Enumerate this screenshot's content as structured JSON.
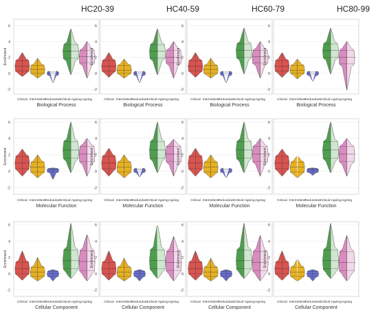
{
  "column_titles": [
    "HC20-39",
    "HC40-59",
    "HC60-79",
    "HC80-99"
  ],
  "row_titles": [
    "Biological Process",
    "Molecular Function",
    "Cellular Component"
  ],
  "categories": [
    "Critical",
    "Intermittent",
    "Redundant",
    "Critical-Ageing",
    "Ageing"
  ],
  "ylabel": "Enrichment",
  "colors": {
    "Critical": "#d9534f",
    "Intermittent": "#e6b122",
    "Redundant": "#6a6fd1",
    "Critical-Ageing": "#4f9e4f",
    "Ageing": "#d98cbf",
    "Critical-Ageing-light": "#cfe6cf",
    "Ageing-light": "#f3d8ea"
  },
  "chart_data": [
    {
      "type": "violin",
      "column": "HC20-39",
      "row": "Biological Process",
      "title": "HC20-39",
      "xlabel": "Biological Process",
      "ylabel": "Enrichment",
      "yticks": [
        -2,
        0,
        2,
        4,
        6
      ],
      "ylim": [
        -2.6,
        6.8
      ],
      "categories": [
        "Critical",
        "Intermittent",
        "Redundant",
        "Critical-Ageing",
        "Ageing"
      ],
      "violins": [
        {
          "min": -0.4,
          "max": 2.6,
          "q1": 0.3,
          "median": 0.9,
          "q3": 1.6
        },
        {
          "min": -0.6,
          "max": 1.9,
          "q1": 0.0,
          "median": 0.5,
          "q3": 1.0
        },
        {
          "min": -1.2,
          "max": 0.3,
          "q1": -0.2,
          "median": 0.05,
          "q3": 0.2
        },
        {
          "min": -0.2,
          "max": 5.6,
          "q1": 1.9,
          "median": 2.8,
          "q3": 3.6
        },
        {
          "min": -0.6,
          "max": 4.0,
          "q1": 1.3,
          "median": 2.1,
          "q3": 2.9
        }
      ]
    },
    {
      "type": "violin",
      "column": "HC40-59",
      "row": "Biological Process",
      "title": "HC40-59",
      "xlabel": "Biological Process",
      "ylabel": "Enrichment",
      "yticks": [
        -2,
        0,
        2,
        4,
        6
      ],
      "ylim": [
        -2.6,
        6.8
      ],
      "categories": [
        "Critical",
        "Intermittent",
        "Redundant",
        "Critical-Ageing",
        "Ageing"
      ],
      "violins": [
        {
          "min": -0.5,
          "max": 2.6,
          "q1": 0.3,
          "median": 0.9,
          "q3": 1.6
        },
        {
          "min": -0.6,
          "max": 1.8,
          "q1": 0.0,
          "median": 0.4,
          "q3": 1.0
        },
        {
          "min": -1.2,
          "max": 0.3,
          "q1": -0.2,
          "median": 0.05,
          "q3": 0.2
        },
        {
          "min": -0.2,
          "max": 5.6,
          "q1": 1.9,
          "median": 2.8,
          "q3": 3.6
        },
        {
          "min": -0.6,
          "max": 4.0,
          "q1": 1.3,
          "median": 2.0,
          "q3": 2.9
        }
      ]
    },
    {
      "type": "violin",
      "column": "HC60-79",
      "row": "Biological Process",
      "title": "HC60-79",
      "xlabel": "Biological Process",
      "ylabel": "Enrichment",
      "yticks": [
        -2,
        0,
        2,
        4,
        6
      ],
      "ylim": [
        -2.6,
        6.8
      ],
      "categories": [
        "Critical",
        "Intermittent",
        "Redundant",
        "Critical-Ageing",
        "Ageing"
      ],
      "violins": [
        {
          "min": -0.5,
          "max": 2.6,
          "q1": 0.3,
          "median": 0.9,
          "q3": 1.6
        },
        {
          "min": -0.6,
          "max": 1.9,
          "q1": 0.0,
          "median": 0.5,
          "q3": 1.0
        },
        {
          "min": -1.2,
          "max": 0.3,
          "q1": -0.2,
          "median": 0.05,
          "q3": 0.2
        },
        {
          "min": -0.1,
          "max": 5.7,
          "q1": 2.0,
          "median": 2.9,
          "q3": 3.7
        },
        {
          "min": -0.6,
          "max": 4.0,
          "q1": 1.3,
          "median": 2.1,
          "q3": 2.9
        }
      ]
    },
    {
      "type": "violin",
      "column": "HC80-99",
      "row": "Biological Process",
      "title": "HC80-99",
      "xlabel": "Biological Process",
      "ylabel": "Enrichment",
      "yticks": [
        -2,
        0,
        2,
        4,
        6
      ],
      "ylim": [
        -2.6,
        6.8
      ],
      "categories": [
        "Critical",
        "Intermittent",
        "Redundant",
        "Critical-Ageing",
        "Ageing"
      ],
      "violins": [
        {
          "min": -0.5,
          "max": 2.6,
          "q1": 0.3,
          "median": 0.9,
          "q3": 1.6
        },
        {
          "min": -0.7,
          "max": 1.8,
          "q1": 0.0,
          "median": 0.4,
          "q3": 1.0
        },
        {
          "min": -1.0,
          "max": 0.3,
          "q1": -0.2,
          "median": 0.05,
          "q3": 0.2
        },
        {
          "min": -0.1,
          "max": 5.7,
          "q1": 2.0,
          "median": 2.9,
          "q3": 3.7
        },
        {
          "min": -2.1,
          "max": 4.0,
          "q1": 1.2,
          "median": 2.0,
          "q3": 2.9
        }
      ]
    },
    {
      "type": "violin",
      "column": "HC20-39",
      "row": "Molecular Function",
      "xlabel": "Molecular Function",
      "ylabel": "Enrichment",
      "yticks": [
        -2,
        0,
        2,
        4,
        6
      ],
      "ylim": [
        -2.8,
        6.4
      ],
      "categories": [
        "Critical",
        "Intermittent",
        "Redundant",
        "Critical-Ageing",
        "Ageing"
      ],
      "violins": [
        {
          "min": -0.6,
          "max": 2.7,
          "q1": 0.3,
          "median": 1.0,
          "q3": 1.8
        },
        {
          "min": -0.8,
          "max": 2.0,
          "q1": -0.1,
          "median": 0.5,
          "q3": 1.1
        },
        {
          "min": -1.0,
          "max": 0.4,
          "q1": -0.1,
          "median": 0.15,
          "q3": 0.3
        },
        {
          "min": -0.2,
          "max": 6.0,
          "q1": 1.6,
          "median": 2.6,
          "q3": 3.6
        },
        {
          "min": -0.6,
          "max": 4.0,
          "q1": 1.2,
          "median": 2.1,
          "q3": 3.0
        }
      ]
    },
    {
      "type": "violin",
      "column": "HC40-59",
      "row": "Molecular Function",
      "xlabel": "Molecular Function",
      "ylabel": "Enrichment",
      "yticks": [
        -2,
        0,
        2,
        4,
        6
      ],
      "ylim": [
        -2.8,
        6.4
      ],
      "categories": [
        "Critical",
        "Intermittent",
        "Redundant",
        "Critical-Ageing",
        "Ageing"
      ],
      "violins": [
        {
          "min": -0.6,
          "max": 2.8,
          "q1": 0.3,
          "median": 1.0,
          "q3": 1.8
        },
        {
          "min": -0.8,
          "max": 2.0,
          "q1": -0.1,
          "median": 0.5,
          "q3": 1.1
        },
        {
          "min": -0.7,
          "max": 0.4,
          "q1": -0.1,
          "median": 0.15,
          "q3": 0.3
        },
        {
          "min": -0.2,
          "max": 6.0,
          "q1": 1.6,
          "median": 2.6,
          "q3": 3.6
        },
        {
          "min": -0.6,
          "max": 3.9,
          "q1": 1.2,
          "median": 2.1,
          "q3": 3.0
        }
      ]
    },
    {
      "type": "violin",
      "column": "HC60-79",
      "row": "Molecular Function",
      "xlabel": "Molecular Function",
      "ylabel": "Enrichment",
      "yticks": [
        -2,
        0,
        2,
        4,
        6
      ],
      "ylim": [
        -2.8,
        6.4
      ],
      "categories": [
        "Critical",
        "Intermittent",
        "Redundant",
        "Critical-Ageing",
        "Ageing"
      ],
      "violins": [
        {
          "min": -0.6,
          "max": 2.8,
          "q1": 0.3,
          "median": 1.0,
          "q3": 1.8
        },
        {
          "min": -0.8,
          "max": 2.0,
          "q1": -0.1,
          "median": 0.5,
          "q3": 1.1
        },
        {
          "min": -0.8,
          "max": 0.4,
          "q1": -0.1,
          "median": 0.15,
          "q3": 0.3
        },
        {
          "min": -0.2,
          "max": 6.0,
          "q1": 1.6,
          "median": 2.6,
          "q3": 3.6
        },
        {
          "min": -0.6,
          "max": 4.0,
          "q1": 1.2,
          "median": 2.1,
          "q3": 3.0
        }
      ]
    },
    {
      "type": "violin",
      "column": "HC80-99",
      "row": "Molecular Function",
      "xlabel": "Molecular Function",
      "ylabel": "Enrichment",
      "yticks": [
        -2,
        0,
        2,
        4,
        6
      ],
      "ylim": [
        -2.8,
        6.4
      ],
      "categories": [
        "Critical",
        "Intermittent",
        "Redundant",
        "Critical-Ageing",
        "Ageing"
      ],
      "violins": [
        {
          "min": -0.6,
          "max": 2.7,
          "q1": 0.3,
          "median": 1.0,
          "q3": 1.8
        },
        {
          "min": -0.8,
          "max": 1.9,
          "q1": -0.1,
          "median": 0.5,
          "q3": 1.1
        },
        {
          "min": -0.5,
          "max": 0.4,
          "q1": -0.1,
          "median": 0.15,
          "q3": 0.3
        },
        {
          "min": -0.2,
          "max": 6.0,
          "q1": 1.6,
          "median": 2.6,
          "q3": 3.6
        },
        {
          "min": -0.6,
          "max": 4.0,
          "q1": 1.2,
          "median": 2.1,
          "q3": 3.0
        }
      ]
    },
    {
      "type": "violin",
      "column": "HC20-39",
      "row": "Cellular Component",
      "xlabel": "Cellular Component",
      "ylabel": "Enrichment",
      "yticks": [
        -2,
        0,
        2,
        4,
        6
      ],
      "ylim": [
        -2.8,
        6.4
      ],
      "categories": [
        "Critical",
        "Intermittent",
        "Redundant",
        "Critical-Ageing",
        "Ageing"
      ],
      "violins": [
        {
          "min": -0.8,
          "max": 2.8,
          "q1": 0.0,
          "median": 0.6,
          "q3": 1.4
        },
        {
          "min": -0.9,
          "max": 2.0,
          "q1": -0.3,
          "median": 0.2,
          "q3": 0.8
        },
        {
          "min": -0.9,
          "max": 0.5,
          "q1": -0.3,
          "median": 0.0,
          "q3": 0.3
        },
        {
          "min": -0.6,
          "max": 6.2,
          "q1": 0.6,
          "median": 1.6,
          "q3": 2.9
        },
        {
          "min": -0.9,
          "max": 4.8,
          "q1": 0.4,
          "median": 1.5,
          "q3": 2.8
        }
      ]
    },
    {
      "type": "violin",
      "column": "HC40-59",
      "row": "Cellular Component",
      "xlabel": "Cellular Component",
      "ylabel": "Enrichment",
      "yticks": [
        -2,
        0,
        2,
        4,
        6
      ],
      "ylim": [
        -2.8,
        6.4
      ],
      "categories": [
        "Critical",
        "Intermittent",
        "Redundant",
        "Critical-Ageing",
        "Ageing"
      ],
      "violins": [
        {
          "min": -0.8,
          "max": 2.8,
          "q1": 0.0,
          "median": 0.6,
          "q3": 1.4
        },
        {
          "min": -0.9,
          "max": 1.9,
          "q1": -0.3,
          "median": 0.2,
          "q3": 0.8
        },
        {
          "min": -0.9,
          "max": 0.5,
          "q1": -0.3,
          "median": 0.0,
          "q3": 0.3
        },
        {
          "min": -0.6,
          "max": 6.1,
          "q1": 0.6,
          "median": 1.6,
          "q3": 2.9
        },
        {
          "min": -0.9,
          "max": 4.6,
          "q1": 0.4,
          "median": 1.4,
          "q3": 2.7
        }
      ]
    },
    {
      "type": "violin",
      "column": "HC60-79",
      "row": "Cellular Component",
      "xlabel": "Cellular Component",
      "ylabel": "Enrichment",
      "yticks": [
        -2,
        0,
        2,
        4,
        6
      ],
      "ylim": [
        -2.8,
        6.4
      ],
      "categories": [
        "Critical",
        "Intermittent",
        "Redundant",
        "Critical-Ageing",
        "Ageing"
      ],
      "violins": [
        {
          "min": -0.8,
          "max": 2.8,
          "q1": 0.0,
          "median": 0.6,
          "q3": 1.4
        },
        {
          "min": -0.9,
          "max": 1.9,
          "q1": -0.3,
          "median": 0.2,
          "q3": 0.8
        },
        {
          "min": -0.9,
          "max": 0.5,
          "q1": -0.3,
          "median": 0.0,
          "q3": 0.3
        },
        {
          "min": -0.6,
          "max": 6.2,
          "q1": 0.6,
          "median": 1.6,
          "q3": 2.9
        },
        {
          "min": -0.9,
          "max": 4.7,
          "q1": 0.4,
          "median": 1.4,
          "q3": 2.7
        }
      ]
    },
    {
      "type": "violin",
      "column": "HC80-99",
      "row": "Cellular Component",
      "xlabel": "Cellular Component",
      "ylabel": "Enrichment",
      "yticks": [
        -2,
        0,
        2,
        4,
        6
      ],
      "ylim": [
        -2.8,
        6.4
      ],
      "categories": [
        "Critical",
        "Intermittent",
        "Redundant",
        "Critical-Ageing",
        "Ageing"
      ],
      "violins": [
        {
          "min": -0.8,
          "max": 2.8,
          "q1": 0.0,
          "median": 0.6,
          "q3": 1.4
        },
        {
          "min": -0.9,
          "max": 1.8,
          "q1": -0.3,
          "median": 0.2,
          "q3": 0.8
        },
        {
          "min": -0.9,
          "max": 0.5,
          "q1": -0.3,
          "median": 0.0,
          "q3": 0.3
        },
        {
          "min": -0.6,
          "max": 6.2,
          "q1": 0.6,
          "median": 1.6,
          "q3": 2.9
        },
        {
          "min": -0.9,
          "max": 4.7,
          "q1": 0.4,
          "median": 1.4,
          "q3": 2.7
        }
      ]
    }
  ]
}
